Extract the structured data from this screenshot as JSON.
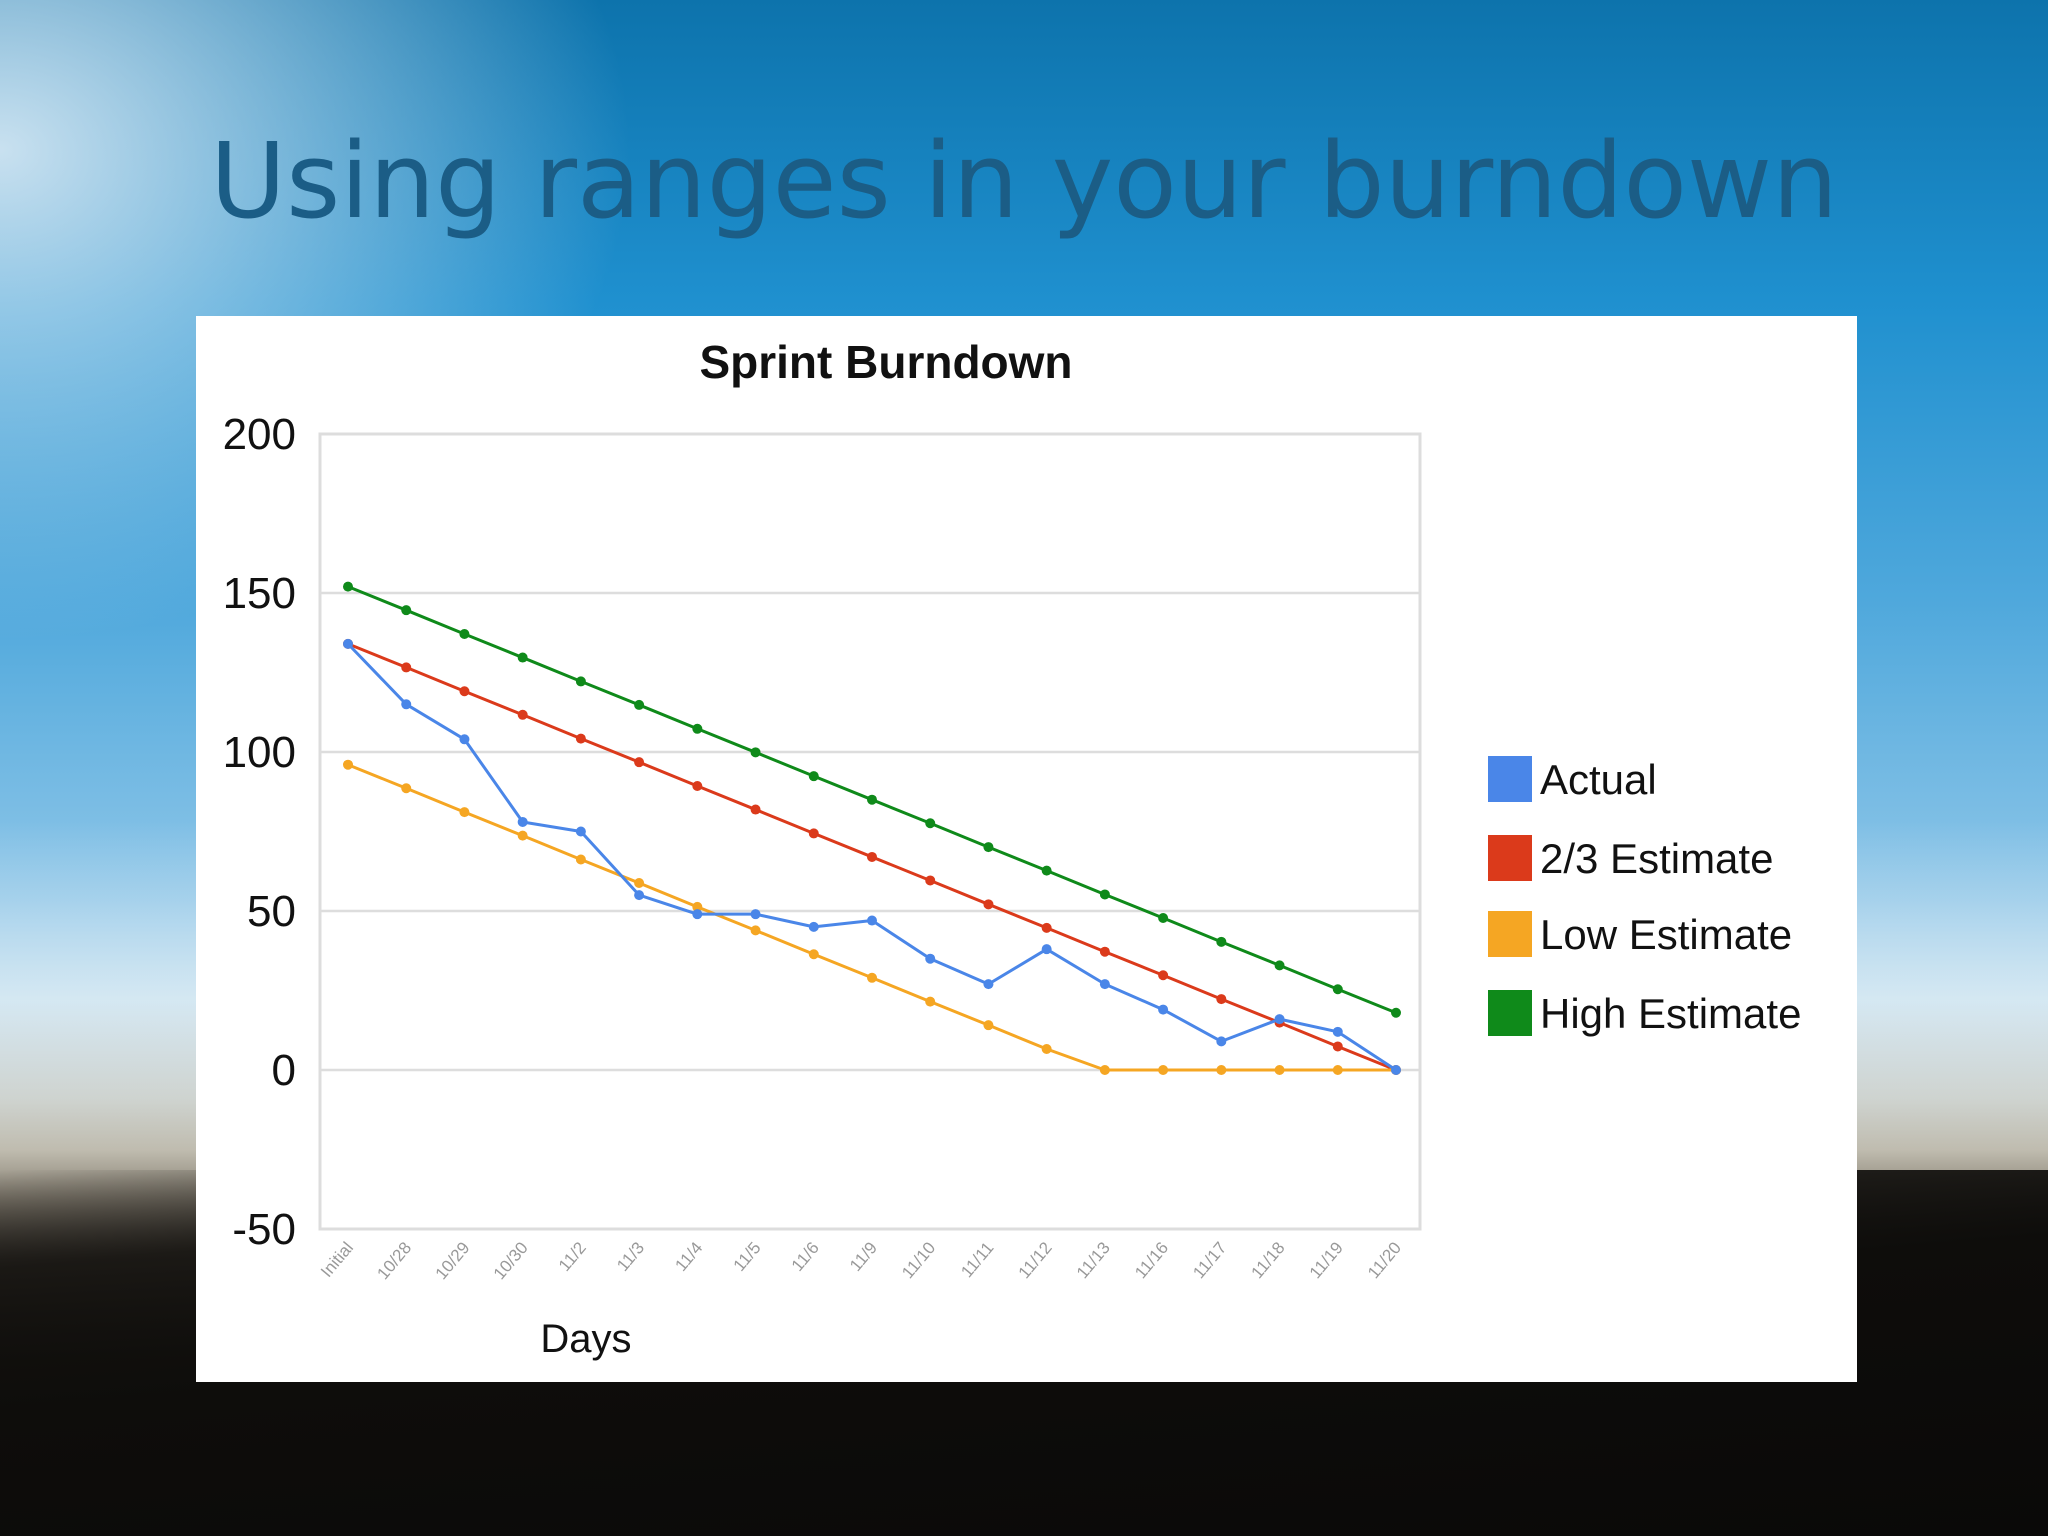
{
  "slide": {
    "title": "Using ranges in your burndown"
  },
  "colors": {
    "title": "#1b5d86",
    "actual": "#4a86e8",
    "two_thirds": "#db3a1b",
    "low": "#f5a623",
    "high": "#0f8a1a",
    "grid": "#dddddd"
  },
  "chart_data": {
    "type": "line",
    "title": "Sprint Burndown",
    "xlabel": "Days",
    "ylabel": "",
    "ylim": [
      -50,
      200
    ],
    "yticks": [
      200,
      150,
      100,
      50,
      0,
      -50
    ],
    "grid": true,
    "legend_position": "right",
    "categories": [
      "Initial",
      "10/28",
      "10/29",
      "10/30",
      "11/2",
      "11/3",
      "11/4",
      "11/5",
      "11/6",
      "11/9",
      "11/10",
      "11/11",
      "11/12",
      "11/13",
      "11/16",
      "11/17",
      "11/18",
      "11/19",
      "11/20"
    ],
    "series": [
      {
        "name": "Actual",
        "color": "#4a86e8",
        "values": [
          134,
          115,
          104,
          78,
          75,
          55,
          49,
          49,
          45,
          47,
          35,
          27,
          38,
          27,
          19,
          9,
          16,
          12,
          0
        ]
      },
      {
        "name": "2/3 Estimate",
        "color": "#db3a1b",
        "values": [
          134,
          126.6,
          119.1,
          111.7,
          104.2,
          96.8,
          89.3,
          81.9,
          74.4,
          67,
          59.6,
          52.1,
          44.7,
          37.2,
          29.8,
          22.3,
          14.9,
          7.4,
          0
        ]
      },
      {
        "name": "Low Estimate",
        "color": "#f5a623",
        "values": [
          96,
          88.6,
          81.1,
          73.7,
          66.2,
          58.8,
          51.3,
          43.9,
          36.4,
          29,
          21.5,
          14.1,
          6.6,
          0,
          0,
          0,
          0,
          0,
          0
        ]
      },
      {
        "name": "High Estimate",
        "color": "#0f8a1a",
        "values": [
          152,
          144.6,
          137.1,
          129.7,
          122.2,
          114.8,
          107.3,
          99.9,
          92.4,
          85,
          77.6,
          70.1,
          62.7,
          55.2,
          47.8,
          40.3,
          32.9,
          25.4,
          18
        ]
      }
    ]
  }
}
